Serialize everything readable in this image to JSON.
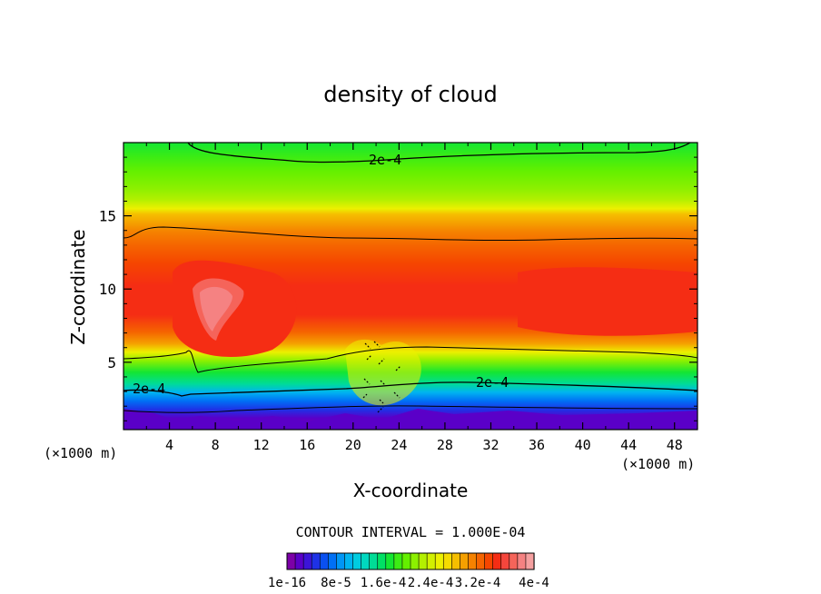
{
  "chart_data": {
    "type": "heatmap",
    "title": "density of cloud",
    "xlabel": "X-coordinate",
    "ylabel": "Z-coordinate",
    "x_unit_label": "(×1000 m)",
    "x_unit_label_right": "(×1000 m)",
    "xlim": [
      0,
      50
    ],
    "ylim": [
      0.4,
      20
    ],
    "x_ticks": [
      4,
      8,
      12,
      16,
      20,
      24,
      28,
      32,
      36,
      40,
      44,
      48
    ],
    "x_tick_labels": [
      "4",
      "8",
      "12",
      "16",
      "20",
      "24",
      "28",
      "32",
      "36",
      "40",
      "44",
      "48"
    ],
    "y_ticks": [
      5,
      10,
      15
    ],
    "y_tick_labels": [
      "5",
      "10",
      "15"
    ],
    "contour_interval_label": "CONTOUR INTERVAL = 1.000E-04",
    "contour_labels": [
      "2e-4",
      "2e-4",
      "2e-4"
    ],
    "colorbar": {
      "min": 1e-16,
      "max": 0.0004,
      "tick_labels": [
        "1e-16",
        "8e-5",
        "1.6e-4",
        "2.4e-4",
        "3.2e-4",
        "4e-4"
      ],
      "colors": [
        "#7c00a8",
        "#5a00c8",
        "#3c14d8",
        "#1e32e6",
        "#0a50f0",
        "#0070f5",
        "#0096f5",
        "#00b4f0",
        "#00cce0",
        "#00d8c0",
        "#00dc96",
        "#00e064",
        "#14e632",
        "#3cec14",
        "#64f000",
        "#8cf000",
        "#b4f000",
        "#d2f000",
        "#ecf000",
        "#f5dc00",
        "#f5be00",
        "#f5a000",
        "#f58200",
        "#f56400",
        "#f54600",
        "#f52d14",
        "#f5463c",
        "#f5645a",
        "#f58282",
        "#f5a0a0"
      ]
    }
  }
}
